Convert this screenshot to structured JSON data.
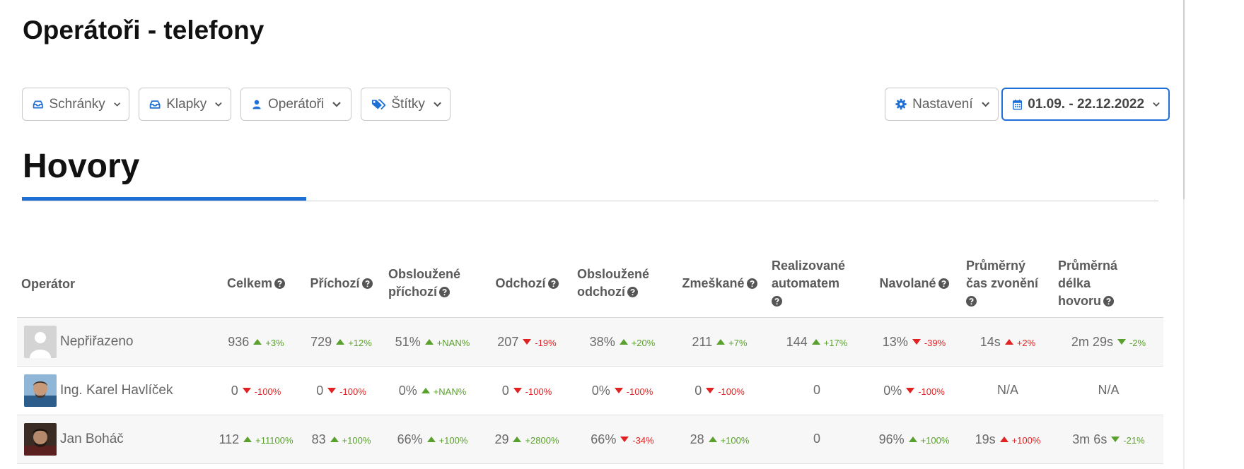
{
  "header": {
    "title": "Operátoři - telefony"
  },
  "filters": {
    "mailboxes": "Schránky",
    "extensions": "Klapky",
    "operators": "Operátoři",
    "tags": "Štítky",
    "settings": "Nastavení",
    "date_range": "01.09. - 22.12.2022"
  },
  "section": {
    "title": "Hovory"
  },
  "colors": {
    "accent": "#1e6fd6",
    "up": "#5aa02c",
    "down": "#e02222"
  },
  "table": {
    "headers": {
      "operator": "Operátor",
      "total": "Celkem",
      "incoming": "Příchozí",
      "served_incoming_1": "Obsloužené",
      "served_incoming_2": "příchozí",
      "outgoing": "Odchozí",
      "served_outgoing_1": "Obsloužené",
      "served_outgoing_2": "odchozí",
      "missed": "Zmeškané",
      "automated_1": "Realizované",
      "automated_2": "automatem",
      "dialed": "Navolané",
      "avg_ring_1": "Průměrný",
      "avg_ring_2": "čas zvonění",
      "avg_call_1": "Průměrná",
      "avg_call_2": "délka",
      "avg_call_3": "hovoru"
    },
    "rows": [
      {
        "name": "Nepřiřazeno",
        "cells": [
          {
            "v": "936",
            "d": "+3%",
            "t": "up"
          },
          {
            "v": "729",
            "d": "+12%",
            "t": "up"
          },
          {
            "v": "51%",
            "d": "+NAN%",
            "t": "up"
          },
          {
            "v": "207",
            "d": "-19%",
            "t": "down"
          },
          {
            "v": "38%",
            "d": "+20%",
            "t": "up"
          },
          {
            "v": "211",
            "d": "+7%",
            "t": "up"
          },
          {
            "v": "144",
            "d": "+17%",
            "t": "up"
          },
          {
            "v": "13%",
            "d": "-39%",
            "t": "down"
          },
          {
            "v": "14s",
            "d": "+2%",
            "t": "up-red"
          },
          {
            "v": "2m 29s",
            "d": "-2%",
            "t": "down-green"
          }
        ]
      },
      {
        "name": "Ing. Karel Havlíček",
        "cells": [
          {
            "v": "0",
            "d": "-100%",
            "t": "down"
          },
          {
            "v": "0",
            "d": "-100%",
            "t": "down"
          },
          {
            "v": "0%",
            "d": "+NAN%",
            "t": "up"
          },
          {
            "v": "0",
            "d": "-100%",
            "t": "down"
          },
          {
            "v": "0%",
            "d": "-100%",
            "t": "down"
          },
          {
            "v": "0",
            "d": "-100%",
            "t": "down"
          },
          {
            "v": "0",
            "d": "",
            "t": "none"
          },
          {
            "v": "0%",
            "d": "-100%",
            "t": "down"
          },
          {
            "v": "N/A",
            "d": "",
            "t": "none"
          },
          {
            "v": "N/A",
            "d": "",
            "t": "none"
          }
        ]
      },
      {
        "name": "Jan Boháč",
        "cells": [
          {
            "v": "112",
            "d": "+11100%",
            "t": "up"
          },
          {
            "v": "83",
            "d": "+100%",
            "t": "up"
          },
          {
            "v": "66%",
            "d": "+100%",
            "t": "up"
          },
          {
            "v": "29",
            "d": "+2800%",
            "t": "up"
          },
          {
            "v": "66%",
            "d": "-34%",
            "t": "down"
          },
          {
            "v": "28",
            "d": "+100%",
            "t": "up"
          },
          {
            "v": "0",
            "d": "",
            "t": "none"
          },
          {
            "v": "96%",
            "d": "+100%",
            "t": "up"
          },
          {
            "v": "19s",
            "d": "+100%",
            "t": "up-red"
          },
          {
            "v": "3m 6s",
            "d": "-21%",
            "t": "down-green"
          }
        ]
      }
    ]
  }
}
